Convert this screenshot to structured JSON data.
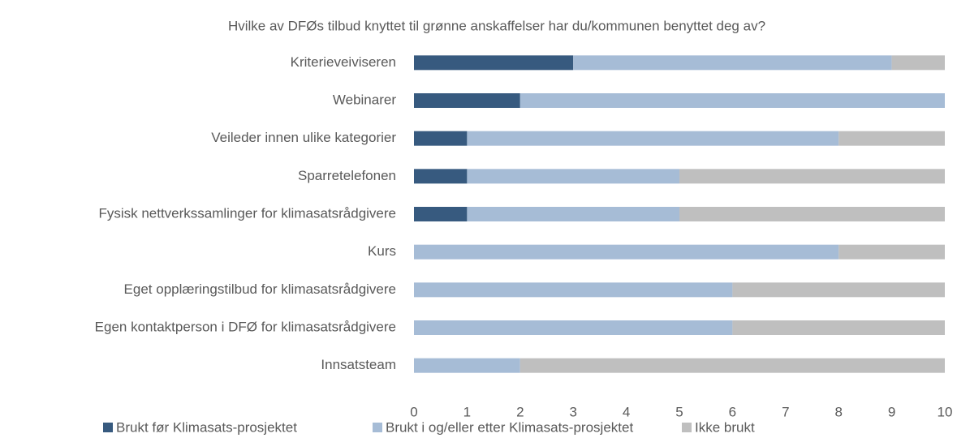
{
  "chart_data": {
    "type": "bar",
    "orientation": "horizontal",
    "stacked": true,
    "title": "Hvilke av DFØs tilbud knyttet til grønne anskaffelser har du/kommunen benyttet deg av?",
    "categories": [
      "Kriterieveiviseren",
      "Webinarer",
      "Veileder innen ulike kategorier",
      "Sparretelefonen",
      "Fysisk nettverkssamlinger for klimasatsrådgivere",
      "Kurs",
      "Eget opplæringstilbud for klimasatsrådgivere",
      "Egen kontaktperson i DFØ for klimasatsrådgivere",
      "Innsatsteam"
    ],
    "series": [
      {
        "name": "Brukt før Klimasats-prosjektet",
        "color": "#375a7f",
        "values": [
          3,
          2,
          1,
          1,
          1,
          0,
          0,
          0,
          0
        ]
      },
      {
        "name": "Brukt i og/eller etter Klimasats-prosjektet",
        "color": "#a6bcd6",
        "values": [
          6,
          8,
          7,
          4,
          4,
          8,
          6,
          6,
          2
        ]
      },
      {
        "name": "Ikke brukt",
        "color": "#bfbfbf",
        "values": [
          1,
          0,
          2,
          5,
          5,
          2,
          4,
          4,
          8
        ]
      }
    ],
    "xlim": [
      0,
      10
    ],
    "xticks": [
      0,
      1,
      2,
      3,
      4,
      5,
      6,
      7,
      8,
      9,
      10
    ],
    "grid": false,
    "legend": "bottom"
  }
}
